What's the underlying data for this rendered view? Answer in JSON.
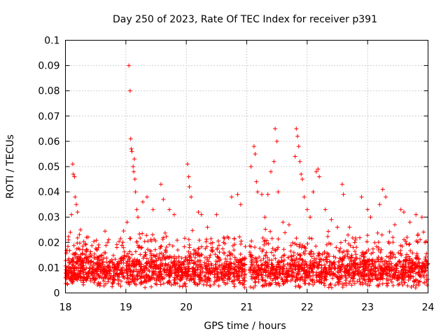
{
  "chart_data": {
    "type": "scatter",
    "title": "Day 250 of 2023, Rate Of TEC Index for receiver p391",
    "xlabel": "GPS time / hours",
    "ylabel": "ROTI / TECUs",
    "xlim": [
      18,
      24
    ],
    "ylim": [
      0,
      0.1
    ],
    "x_ticks": [
      "18",
      "19",
      "20",
      "21",
      "22",
      "23",
      "24"
    ],
    "y_ticks": [
      "0",
      "0.01",
      "0.02",
      "0.03",
      "0.04",
      "0.05",
      "0.06",
      "0.07",
      "0.08",
      "0.09",
      "0.1"
    ],
    "grid": true,
    "marker": "+",
    "series": [
      {
        "name": "ROTI",
        "color": "#ff0000",
        "points": [
          [
            18.05,
            0.021
          ],
          [
            18.08,
            0.024
          ],
          [
            18.1,
            0.031
          ],
          [
            18.12,
            0.051
          ],
          [
            18.13,
            0.047
          ],
          [
            18.15,
            0.046
          ],
          [
            18.16,
            0.038
          ],
          [
            18.18,
            0.035
          ],
          [
            18.2,
            0.032
          ],
          [
            18.25,
            0.025
          ],
          [
            18.35,
            0.022
          ],
          [
            18.55,
            0.019
          ],
          [
            18.7,
            0.02
          ],
          [
            18.85,
            0.018
          ],
          [
            18.95,
            0.02
          ],
          [
            19.02,
            0.028
          ],
          [
            19.05,
            0.09
          ],
          [
            19.07,
            0.08
          ],
          [
            19.08,
            0.061
          ],
          [
            19.09,
            0.057
          ],
          [
            19.1,
            0.056
          ],
          [
            19.12,
            0.05
          ],
          [
            19.13,
            0.048
          ],
          [
            19.14,
            0.053
          ],
          [
            19.15,
            0.045
          ],
          [
            19.16,
            0.04
          ],
          [
            19.18,
            0.033
          ],
          [
            19.2,
            0.03
          ],
          [
            19.28,
            0.036
          ],
          [
            19.35,
            0.038
          ],
          [
            19.45,
            0.033
          ],
          [
            19.58,
            0.043
          ],
          [
            19.62,
            0.037
          ],
          [
            19.72,
            0.033
          ],
          [
            19.8,
            0.031
          ],
          [
            20.02,
            0.051
          ],
          [
            20.04,
            0.046
          ],
          [
            20.05,
            0.042
          ],
          [
            20.08,
            0.038
          ],
          [
            20.2,
            0.032
          ],
          [
            20.25,
            0.031
          ],
          [
            20.35,
            0.026
          ],
          [
            20.5,
            0.031
          ],
          [
            20.62,
            0.022
          ],
          [
            20.75,
            0.038
          ],
          [
            20.85,
            0.039
          ],
          [
            20.9,
            0.035
          ],
          [
            21.07,
            0.05
          ],
          [
            21.12,
            0.058
          ],
          [
            21.14,
            0.055
          ],
          [
            21.16,
            0.044
          ],
          [
            21.18,
            0.04
          ],
          [
            21.25,
            0.039
          ],
          [
            21.3,
            0.03
          ],
          [
            21.35,
            0.039
          ],
          [
            21.4,
            0.048
          ],
          [
            21.45,
            0.052
          ],
          [
            21.47,
            0.065
          ],
          [
            21.5,
            0.06
          ],
          [
            21.52,
            0.04
          ],
          [
            21.6,
            0.028
          ],
          [
            21.7,
            0.027
          ],
          [
            21.8,
            0.054
          ],
          [
            21.82,
            0.065
          ],
          [
            21.84,
            0.062
          ],
          [
            21.86,
            0.058
          ],
          [
            21.88,
            0.052
          ],
          [
            21.9,
            0.047
          ],
          [
            21.92,
            0.045
          ],
          [
            21.95,
            0.038
          ],
          [
            22.0,
            0.033
          ],
          [
            22.05,
            0.03
          ],
          [
            22.1,
            0.04
          ],
          [
            22.15,
            0.048
          ],
          [
            22.18,
            0.049
          ],
          [
            22.2,
            0.046
          ],
          [
            22.3,
            0.033
          ],
          [
            22.4,
            0.029
          ],
          [
            22.5,
            0.026
          ],
          [
            22.58,
            0.043
          ],
          [
            22.6,
            0.039
          ],
          [
            22.7,
            0.026
          ],
          [
            22.8,
            0.021
          ],
          [
            22.9,
            0.038
          ],
          [
            23.0,
            0.033
          ],
          [
            23.05,
            0.03
          ],
          [
            23.2,
            0.035
          ],
          [
            23.25,
            0.041
          ],
          [
            23.3,
            0.038
          ],
          [
            23.45,
            0.027
          ],
          [
            23.55,
            0.033
          ],
          [
            23.6,
            0.032
          ],
          [
            23.7,
            0.028
          ],
          [
            23.8,
            0.031
          ],
          [
            23.9,
            0.03
          ],
          [
            23.95,
            0.02
          ],
          [
            18.3,
            0.012
          ],
          [
            18.5,
            0.009
          ],
          [
            18.8,
            0.011
          ],
          [
            19.5,
            0.013
          ],
          [
            20.3,
            0.012
          ],
          [
            21.3,
            0.011
          ],
          [
            22.3,
            0.01
          ],
          [
            23.3,
            0.009
          ]
        ]
      }
    ]
  }
}
